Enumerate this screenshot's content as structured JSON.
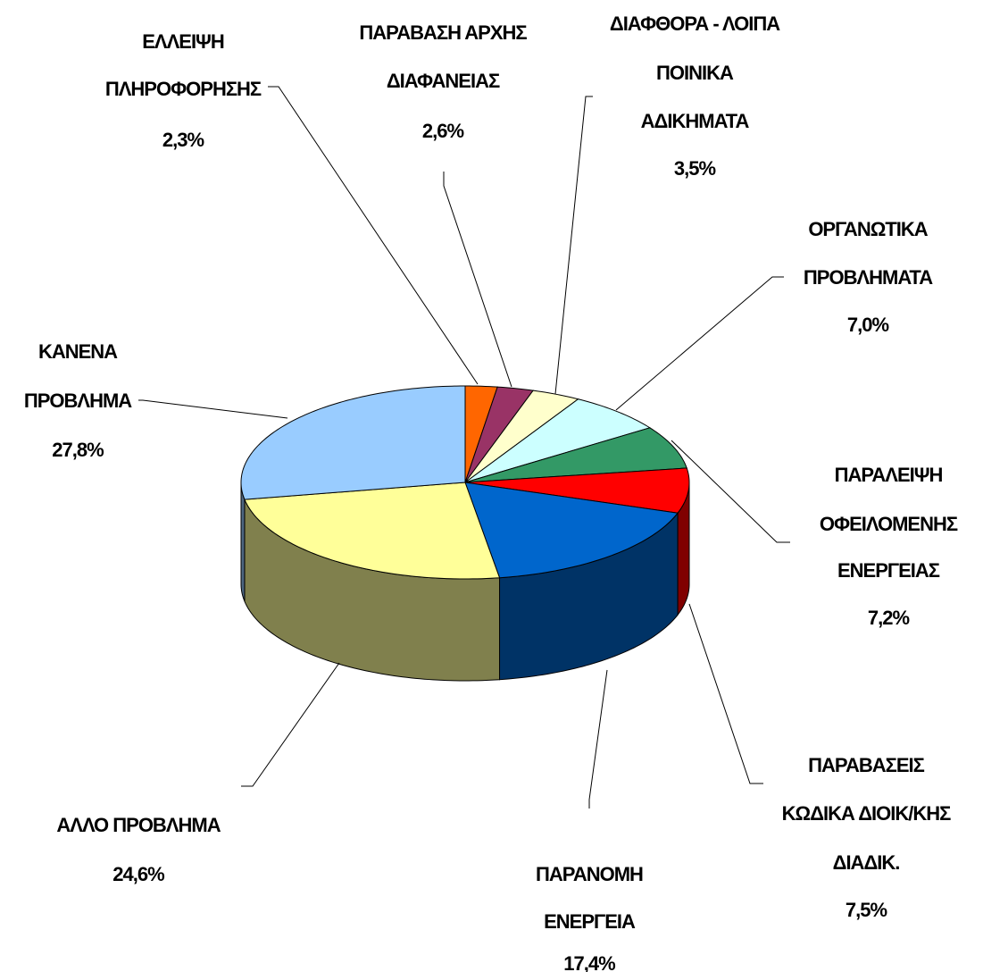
{
  "chart_data": {
    "type": "pie3d",
    "categories": [
      [
        "ΕΛΛΕΙΨΗ",
        "ΠΛΗΡΟΦΟΡΗΣΗΣ"
      ],
      [
        "ΠΑΡΑΒΑΣΗ ΑΡΧΗΣ",
        "ΔΙΑΦΑΝΕΙΑΣ"
      ],
      [
        "ΔΙΑΦΘΟΡΑ - ΛΟΙΠΑ",
        "ΠΟΙΝΙΚΑ",
        "ΑΔΙΚΗΜΑΤΑ"
      ],
      [
        "ΟΡΓΑΝΩΤΙΚΑ",
        "ΠΡΟΒΛΗΜΑΤΑ"
      ],
      [
        "ΠΑΡΑΛΕΙΨΗ",
        "ΟΦΕΙΛΟΜΕΝΗΣ",
        "ΕΝΕΡΓΕΙΑΣ"
      ],
      [
        "ΠΑΡΑΒΑΣΕΙΣ",
        "ΚΩΔΙΚΑ ΔΙΟΙΚ/ΚΗΣ",
        "ΔΙΑΔΙΚ."
      ],
      [
        "ΠΑΡΑΝΟΜΗ",
        "ΕΝΕΡΓΕΙΑ"
      ],
      [
        "ΑΛΛΟ ΠΡΟΒΛΗΜΑ"
      ],
      [
        "ΚΑΝΕΝΑ",
        "ΠΡΟΒΛΗΜΑ"
      ]
    ],
    "values": [
      2.3,
      2.6,
      3.5,
      7.0,
      7.2,
      7.5,
      17.4,
      24.6,
      27.8
    ],
    "value_labels": [
      "2,3%",
      "2,6%",
      "3,5%",
      "7,0%",
      "7,2%",
      "7,5%",
      "17,4%",
      "24,6%",
      "27,8%"
    ],
    "colors": [
      "#ff6600",
      "#993366",
      "#ffffcc",
      "#ccffff",
      "#339966",
      "#ff0000",
      "#0066cc",
      "#ffff99",
      "#99ccff"
    ]
  }
}
